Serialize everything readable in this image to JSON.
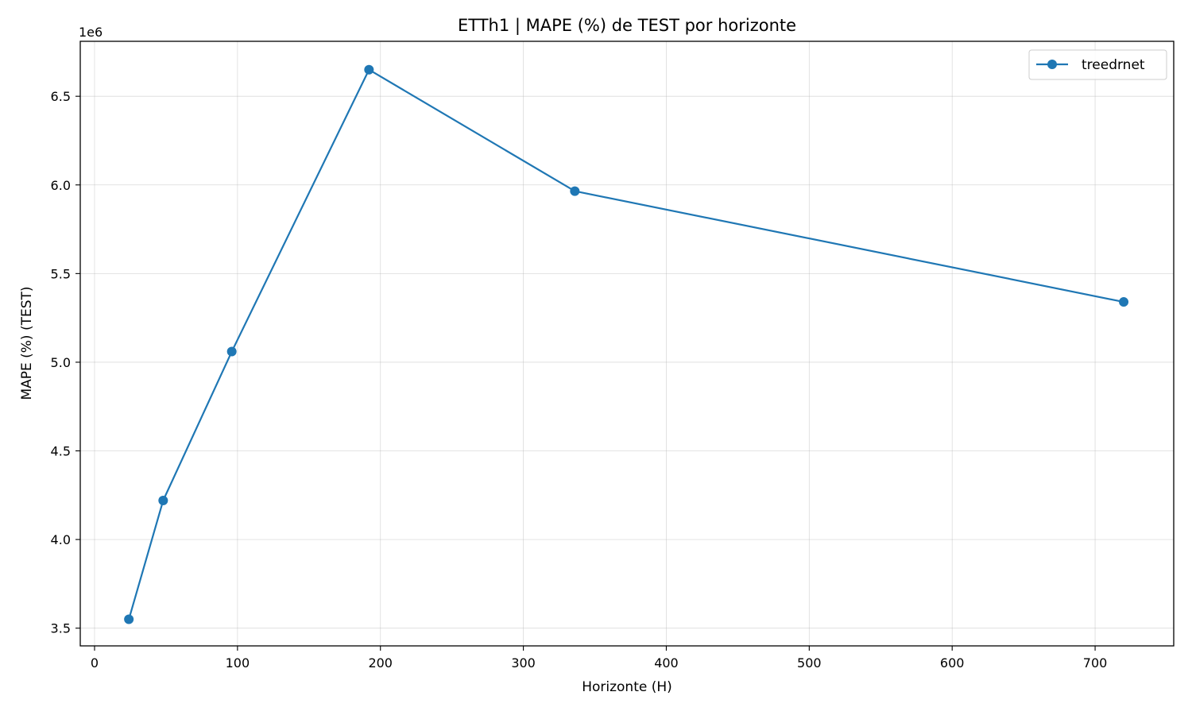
{
  "chart_data": {
    "type": "line",
    "title": "ETTh1 | MAPE (%) de TEST por horizonte",
    "xlabel": "Horizonte (H)",
    "ylabel": "MAPE (%) (TEST)",
    "y_offset_label": "1e6",
    "y_multiplier": 1000000,
    "xlim": [
      -10,
      755
    ],
    "ylim": [
      3.4,
      6.81
    ],
    "x_ticks": [
      0,
      100,
      200,
      300,
      400,
      500,
      600,
      700
    ],
    "x_tick_labels": [
      "0",
      "100",
      "200",
      "300",
      "400",
      "500",
      "600",
      "700"
    ],
    "y_ticks": [
      3.5,
      4.0,
      4.5,
      5.0,
      5.5,
      6.0,
      6.5
    ],
    "y_tick_labels": [
      "3.5",
      "4.0",
      "4.5",
      "5.0",
      "5.5",
      "6.0",
      "6.5"
    ],
    "grid": true,
    "legend_position": "top-right",
    "x": [
      24,
      48,
      96,
      192,
      336,
      720
    ],
    "series": [
      {
        "name": "treedrnet",
        "color": "#1f77b4",
        "marker": "circle",
        "values": [
          3.55,
          4.22,
          5.06,
          6.65,
          5.965,
          5.34
        ]
      }
    ]
  }
}
